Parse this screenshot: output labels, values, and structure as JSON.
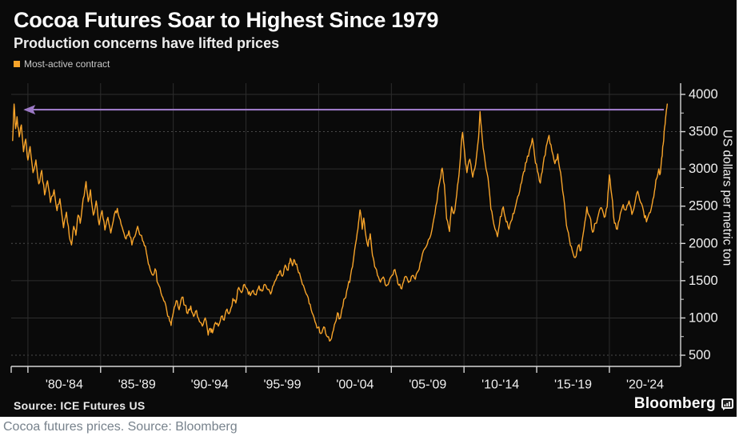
{
  "header": {
    "title": "Cocoa Futures Soar to Highest Since 1979",
    "subtitle": "Production concerns have lifted prices"
  },
  "legend": {
    "label": "Most-active contract"
  },
  "source": {
    "label": "Source: ICE Futures US"
  },
  "branding": {
    "label": "Bloomberg",
    "icon": "terminal-chart-icon"
  },
  "caption": "Cocoa futures prices. Source: Bloomberg",
  "colors": {
    "accent_orange": "#f8a42a",
    "annotation_purple": "#9d7ac7",
    "background": "#0a0a0a",
    "caption_gray": "#77828c",
    "grid_gray": "#2d2d2d",
    "axis_gray": "#d6d6d6"
  },
  "chart_data": {
    "type": "line",
    "title": "Cocoa Futures Soar to Highest Since 1979",
    "subtitle": "Production concerns have lifted prices",
    "xlabel": "",
    "ylabel": "US dollars per metric ton",
    "legend_entries": [
      "Most-active contract"
    ],
    "legend_position": "top-left",
    "grid": true,
    "xlim": [
      1978.85,
      2024.9
    ],
    "ylim": [
      350,
      4150
    ],
    "y_ticks": [
      500,
      1000,
      1500,
      2000,
      2500,
      3000,
      3500,
      4000
    ],
    "x_tick_years": [
      1980,
      1985,
      1990,
      1995,
      2000,
      2005,
      2010,
      2015,
      2020
    ],
    "x_tick_labels": [
      "'80-'84",
      "'85-'89",
      "'90-'94",
      "'95-'99",
      "'00-'04",
      "'05-'09",
      "'10-'14",
      "'15-'19",
      "'20-'24"
    ],
    "annotation": {
      "type": "arrow",
      "description": "horizontal arrow from 2023-24 record high back to 1979 peak",
      "y_value": 3795,
      "from_year": 2023.75,
      "to_year": 1979.8
    },
    "series": [
      {
        "name": "Most-active contract",
        "color": "#f8a42a",
        "points": [
          [
            1978.95,
            3380
          ],
          [
            1979.05,
            3870
          ],
          [
            1979.15,
            3540
          ],
          [
            1979.25,
            3700
          ],
          [
            1979.4,
            3430
          ],
          [
            1979.55,
            3590
          ],
          [
            1979.7,
            3230
          ],
          [
            1979.85,
            3400
          ],
          [
            1980.0,
            3120
          ],
          [
            1980.15,
            3300
          ],
          [
            1980.35,
            2950
          ],
          [
            1980.55,
            3120
          ],
          [
            1980.75,
            2800
          ],
          [
            1980.95,
            2980
          ],
          [
            1981.15,
            2650
          ],
          [
            1981.35,
            2840
          ],
          [
            1981.55,
            2550
          ],
          [
            1981.8,
            2720
          ],
          [
            1982.0,
            2440
          ],
          [
            1982.2,
            2600
          ],
          [
            1982.45,
            2210
          ],
          [
            1982.65,
            2420
          ],
          [
            1982.85,
            2090
          ],
          [
            1983.0,
            1980
          ],
          [
            1983.15,
            2230
          ],
          [
            1983.3,
            2110
          ],
          [
            1983.45,
            2380
          ],
          [
            1983.6,
            2270
          ],
          [
            1983.8,
            2600
          ],
          [
            1984.0,
            2830
          ],
          [
            1984.15,
            2560
          ],
          [
            1984.3,
            2720
          ],
          [
            1984.5,
            2380
          ],
          [
            1984.7,
            2570
          ],
          [
            1984.9,
            2250
          ],
          [
            1985.1,
            2440
          ],
          [
            1985.3,
            2180
          ],
          [
            1985.5,
            2350
          ],
          [
            1985.7,
            2140
          ],
          [
            1985.95,
            2390
          ],
          [
            1986.15,
            2470
          ],
          [
            1986.35,
            2320
          ],
          [
            1986.55,
            2170
          ],
          [
            1986.75,
            2060
          ],
          [
            1986.95,
            2170
          ],
          [
            1987.15,
            1980
          ],
          [
            1987.35,
            2090
          ],
          [
            1987.55,
            2230
          ],
          [
            1987.75,
            2110
          ],
          [
            1987.95,
            2020
          ],
          [
            1988.15,
            1880
          ],
          [
            1988.35,
            1700
          ],
          [
            1988.55,
            1580
          ],
          [
            1988.75,
            1660
          ],
          [
            1988.95,
            1460
          ],
          [
            1989.15,
            1340
          ],
          [
            1989.35,
            1230
          ],
          [
            1989.55,
            1100
          ],
          [
            1989.75,
            960
          ],
          [
            1989.85,
            900
          ],
          [
            1990.0,
            1070
          ],
          [
            1990.2,
            1230
          ],
          [
            1990.4,
            1110
          ],
          [
            1990.6,
            1280
          ],
          [
            1990.8,
            1170
          ],
          [
            1991.0,
            1060
          ],
          [
            1991.2,
            1160
          ],
          [
            1991.4,
            1020
          ],
          [
            1991.6,
            1100
          ],
          [
            1991.8,
            950
          ],
          [
            1992.0,
            890
          ],
          [
            1992.2,
            1000
          ],
          [
            1992.4,
            770
          ],
          [
            1992.55,
            860
          ],
          [
            1992.7,
            800
          ],
          [
            1992.9,
            940
          ],
          [
            1993.1,
            890
          ],
          [
            1993.3,
            1020
          ],
          [
            1993.5,
            970
          ],
          [
            1993.7,
            1120
          ],
          [
            1993.9,
            1080
          ],
          [
            1994.1,
            1260
          ],
          [
            1994.3,
            1200
          ],
          [
            1994.5,
            1410
          ],
          [
            1994.7,
            1340
          ],
          [
            1994.9,
            1450
          ],
          [
            1995.1,
            1380
          ],
          [
            1995.3,
            1300
          ],
          [
            1995.5,
            1370
          ],
          [
            1995.7,
            1310
          ],
          [
            1995.9,
            1430
          ],
          [
            1996.1,
            1360
          ],
          [
            1996.3,
            1450
          ],
          [
            1996.5,
            1380
          ],
          [
            1996.7,
            1320
          ],
          [
            1996.9,
            1440
          ],
          [
            1997.1,
            1530
          ],
          [
            1997.3,
            1620
          ],
          [
            1997.5,
            1560
          ],
          [
            1997.7,
            1710
          ],
          [
            1997.9,
            1640
          ],
          [
            1998.05,
            1800
          ],
          [
            1998.2,
            1700
          ],
          [
            1998.35,
            1770
          ],
          [
            1998.55,
            1660
          ],
          [
            1998.75,
            1550
          ],
          [
            1998.95,
            1440
          ],
          [
            1999.15,
            1320
          ],
          [
            1999.35,
            1190
          ],
          [
            1999.55,
            1070
          ],
          [
            1999.75,
            950
          ],
          [
            1999.95,
            870
          ],
          [
            2000.15,
            790
          ],
          [
            2000.35,
            880
          ],
          [
            2000.55,
            760
          ],
          [
            2000.75,
            690
          ],
          [
            2000.95,
            800
          ],
          [
            2001.15,
            940
          ],
          [
            2001.3,
            1070
          ],
          [
            2001.45,
            990
          ],
          [
            2001.6,
            1120
          ],
          [
            2001.8,
            1260
          ],
          [
            2002.0,
            1410
          ],
          [
            2002.2,
            1570
          ],
          [
            2002.4,
            1790
          ],
          [
            2002.6,
            2060
          ],
          [
            2002.75,
            2290
          ],
          [
            2002.85,
            2450
          ],
          [
            2003.0,
            2190
          ],
          [
            2003.1,
            2340
          ],
          [
            2003.25,
            2100
          ],
          [
            2003.4,
            1960
          ],
          [
            2003.55,
            2130
          ],
          [
            2003.7,
            1840
          ],
          [
            2003.85,
            1690
          ],
          [
            2004.05,
            1570
          ],
          [
            2004.25,
            1480
          ],
          [
            2004.45,
            1550
          ],
          [
            2004.65,
            1430
          ],
          [
            2004.85,
            1490
          ],
          [
            2005.05,
            1570
          ],
          [
            2005.25,
            1650
          ],
          [
            2005.45,
            1460
          ],
          [
            2005.65,
            1400
          ],
          [
            2005.85,
            1490
          ],
          [
            2006.05,
            1550
          ],
          [
            2006.25,
            1490
          ],
          [
            2006.45,
            1570
          ],
          [
            2006.65,
            1520
          ],
          [
            2006.85,
            1630
          ],
          [
            2007.05,
            1770
          ],
          [
            2007.3,
            1930
          ],
          [
            2007.55,
            2050
          ],
          [
            2007.8,
            2190
          ],
          [
            2008.0,
            2400
          ],
          [
            2008.2,
            2680
          ],
          [
            2008.35,
            2850
          ],
          [
            2008.5,
            3010
          ],
          [
            2008.65,
            2790
          ],
          [
            2008.8,
            2330
          ],
          [
            2009.0,
            2160
          ],
          [
            2009.15,
            2490
          ],
          [
            2009.3,
            2400
          ],
          [
            2009.5,
            2660
          ],
          [
            2009.65,
            2910
          ],
          [
            2009.8,
            3300
          ],
          [
            2009.9,
            3490
          ],
          [
            2010.05,
            3200
          ],
          [
            2010.2,
            2950
          ],
          [
            2010.4,
            3130
          ],
          [
            2010.6,
            2890
          ],
          [
            2010.8,
            3060
          ],
          [
            2011.0,
            3420
          ],
          [
            2011.1,
            3770
          ],
          [
            2011.25,
            3420
          ],
          [
            2011.45,
            3100
          ],
          [
            2011.65,
            2880
          ],
          [
            2011.85,
            2460
          ],
          [
            2012.05,
            2260
          ],
          [
            2012.3,
            2090
          ],
          [
            2012.5,
            2360
          ],
          [
            2012.7,
            2490
          ],
          [
            2012.9,
            2290
          ],
          [
            2013.1,
            2190
          ],
          [
            2013.3,
            2320
          ],
          [
            2013.5,
            2460
          ],
          [
            2013.7,
            2630
          ],
          [
            2013.9,
            2790
          ],
          [
            2014.1,
            2960
          ],
          [
            2014.3,
            3090
          ],
          [
            2014.5,
            3250
          ],
          [
            2014.7,
            3410
          ],
          [
            2014.85,
            3190
          ],
          [
            2015.05,
            2970
          ],
          [
            2015.25,
            2810
          ],
          [
            2015.45,
            3070
          ],
          [
            2015.65,
            3300
          ],
          [
            2015.85,
            3450
          ],
          [
            2016.05,
            3240
          ],
          [
            2016.25,
            3070
          ],
          [
            2016.45,
            3200
          ],
          [
            2016.65,
            2950
          ],
          [
            2016.85,
            2630
          ],
          [
            2017.05,
            2240
          ],
          [
            2017.25,
            2050
          ],
          [
            2017.45,
            1900
          ],
          [
            2017.65,
            1810
          ],
          [
            2017.85,
            1970
          ],
          [
            2018.05,
            1910
          ],
          [
            2018.25,
            2190
          ],
          [
            2018.45,
            2490
          ],
          [
            2018.65,
            2360
          ],
          [
            2018.85,
            2150
          ],
          [
            2019.05,
            2270
          ],
          [
            2019.25,
            2390
          ],
          [
            2019.45,
            2480
          ],
          [
            2019.65,
            2350
          ],
          [
            2019.85,
            2490
          ],
          [
            2020.0,
            2920
          ],
          [
            2020.15,
            2660
          ],
          [
            2020.35,
            2270
          ],
          [
            2020.55,
            2190
          ],
          [
            2020.75,
            2400
          ],
          [
            2020.95,
            2520
          ],
          [
            2021.15,
            2450
          ],
          [
            2021.35,
            2570
          ],
          [
            2021.55,
            2390
          ],
          [
            2021.75,
            2530
          ],
          [
            2021.95,
            2700
          ],
          [
            2022.15,
            2550
          ],
          [
            2022.35,
            2430
          ],
          [
            2022.55,
            2290
          ],
          [
            2022.75,
            2410
          ],
          [
            2022.95,
            2540
          ],
          [
            2023.1,
            2700
          ],
          [
            2023.25,
            2870
          ],
          [
            2023.4,
            3000
          ],
          [
            2023.5,
            2940
          ],
          [
            2023.6,
            3150
          ],
          [
            2023.7,
            3330
          ],
          [
            2023.8,
            3560
          ],
          [
            2023.9,
            3740
          ],
          [
            2023.98,
            3870
          ]
        ]
      }
    ]
  }
}
